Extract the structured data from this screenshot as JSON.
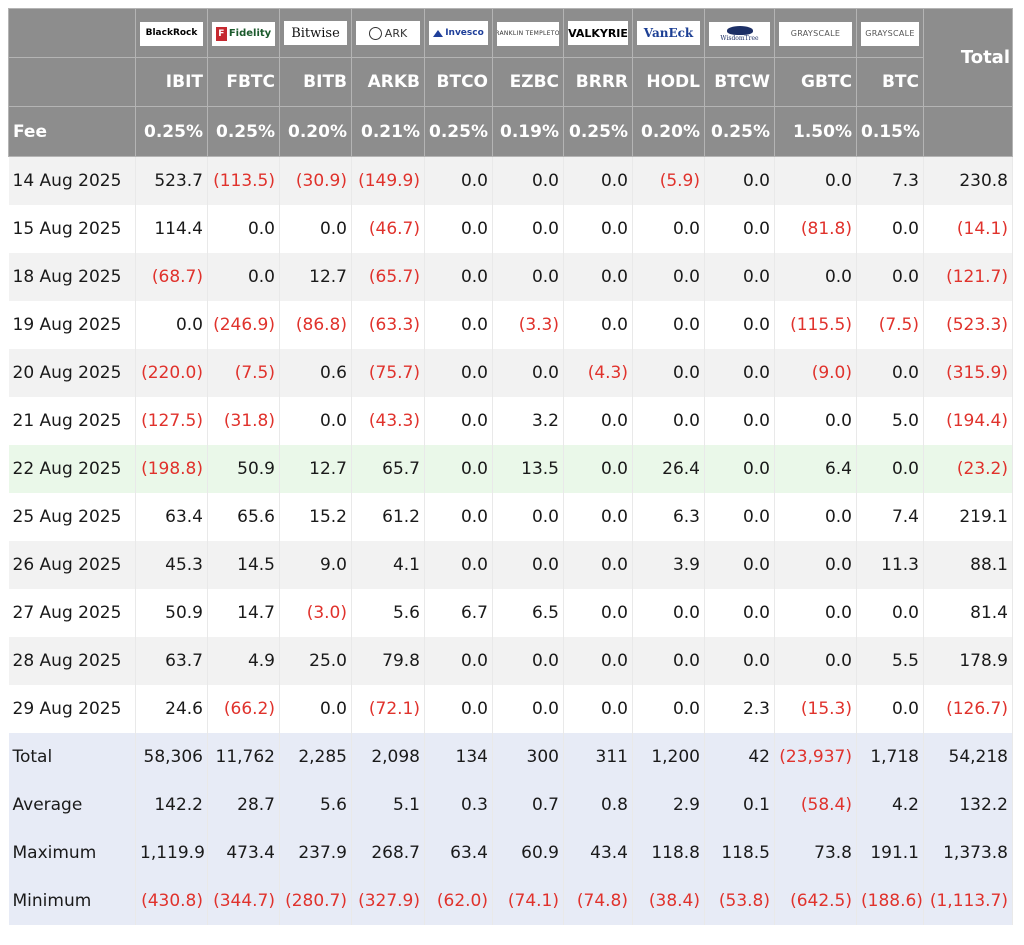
{
  "chart_data": {
    "type": "table",
    "colors": {
      "header_bg": "#8d8d8d",
      "header_text": "#ffffff",
      "negative": "#e0322c",
      "highlight_row": "#eaf8e9",
      "summary_bg": "#e7ebf6",
      "stripe": "#f2f2f2"
    },
    "logos": {
      "blackrock": "BlackRock",
      "fidelity": "Fidelity",
      "bitwise": "Bitwise",
      "ark": "ARK",
      "invesco": "Invesco",
      "franklin": "FRANKLIN TEMPLETON",
      "valkyrie": "VALKYRIE",
      "vaneck": "VanEck",
      "wisdomtree": "WisdomTree",
      "grayscale": "GRAYSCALE",
      "grayscale_btc": "GRAYSCALE"
    },
    "total_label": "Total",
    "fee_label": "Fee",
    "tickers": [
      "IBIT",
      "FBTC",
      "BITB",
      "ARKB",
      "BTCO",
      "EZBC",
      "BRRR",
      "HODL",
      "BTCW",
      "GBTC",
      "BTC"
    ],
    "fees": [
      "0.25%",
      "0.25%",
      "0.20%",
      "0.21%",
      "0.25%",
      "0.19%",
      "0.25%",
      "0.20%",
      "0.25%",
      "1.50%",
      "0.15%"
    ],
    "rows": [
      {
        "date": "14 Aug 2025",
        "values": [
          "523.7",
          "(113.5)",
          "(30.9)",
          "(149.9)",
          "0.0",
          "0.0",
          "0.0",
          "(5.9)",
          "0.0",
          "0.0",
          "7.3",
          "230.8"
        ]
      },
      {
        "date": "15 Aug 2025",
        "values": [
          "114.4",
          "0.0",
          "0.0",
          "(46.7)",
          "0.0",
          "0.0",
          "0.0",
          "0.0",
          "0.0",
          "(81.8)",
          "0.0",
          "(14.1)"
        ]
      },
      {
        "date": "18 Aug 2025",
        "values": [
          "(68.7)",
          "0.0",
          "12.7",
          "(65.7)",
          "0.0",
          "0.0",
          "0.0",
          "0.0",
          "0.0",
          "0.0",
          "0.0",
          "(121.7)"
        ]
      },
      {
        "date": "19 Aug 2025",
        "values": [
          "0.0",
          "(246.9)",
          "(86.8)",
          "(63.3)",
          "0.0",
          "(3.3)",
          "0.0",
          "0.0",
          "0.0",
          "(115.5)",
          "(7.5)",
          "(523.3)"
        ]
      },
      {
        "date": "20 Aug 2025",
        "values": [
          "(220.0)",
          "(7.5)",
          "0.6",
          "(75.7)",
          "0.0",
          "0.0",
          "(4.3)",
          "0.0",
          "0.0",
          "(9.0)",
          "0.0",
          "(315.9)"
        ]
      },
      {
        "date": "21 Aug 2025",
        "values": [
          "(127.5)",
          "(31.8)",
          "0.0",
          "(43.3)",
          "0.0",
          "3.2",
          "0.0",
          "0.0",
          "0.0",
          "0.0",
          "5.0",
          "(194.4)"
        ]
      },
      {
        "date": "22 Aug 2025",
        "highlight": true,
        "values": [
          "(198.8)",
          "50.9",
          "12.7",
          "65.7",
          "0.0",
          "13.5",
          "0.0",
          "26.4",
          "0.0",
          "6.4",
          "0.0",
          "(23.2)"
        ]
      },
      {
        "date": "25 Aug 2025",
        "values": [
          "63.4",
          "65.6",
          "15.2",
          "61.2",
          "0.0",
          "0.0",
          "0.0",
          "6.3",
          "0.0",
          "0.0",
          "7.4",
          "219.1"
        ]
      },
      {
        "date": "26 Aug 2025",
        "values": [
          "45.3",
          "14.5",
          "9.0",
          "4.1",
          "0.0",
          "0.0",
          "0.0",
          "3.9",
          "0.0",
          "0.0",
          "11.3",
          "88.1"
        ]
      },
      {
        "date": "27 Aug 2025",
        "values": [
          "50.9",
          "14.7",
          "(3.0)",
          "5.6",
          "6.7",
          "6.5",
          "0.0",
          "0.0",
          "0.0",
          "0.0",
          "0.0",
          "81.4"
        ]
      },
      {
        "date": "28 Aug 2025",
        "values": [
          "63.7",
          "4.9",
          "25.0",
          "79.8",
          "0.0",
          "0.0",
          "0.0",
          "0.0",
          "0.0",
          "0.0",
          "5.5",
          "178.9"
        ]
      },
      {
        "date": "29 Aug 2025",
        "values": [
          "24.6",
          "(66.2)",
          "0.0",
          "(72.1)",
          "0.0",
          "0.0",
          "0.0",
          "0.0",
          "2.3",
          "(15.3)",
          "0.0",
          "(126.7)"
        ]
      }
    ],
    "summary": [
      {
        "label": "Total",
        "values": [
          "58,306",
          "11,762",
          "2,285",
          "2,098",
          "134",
          "300",
          "311",
          "1,200",
          "42",
          "(23,937)",
          "1,718",
          "54,218"
        ]
      },
      {
        "label": "Average",
        "values": [
          "142.2",
          "28.7",
          "5.6",
          "5.1",
          "0.3",
          "0.7",
          "0.8",
          "2.9",
          "0.1",
          "(58.4)",
          "4.2",
          "132.2"
        ]
      },
      {
        "label": "Maximum",
        "values": [
          "1,119.9",
          "473.4",
          "237.9",
          "268.7",
          "63.4",
          "60.9",
          "43.4",
          "118.8",
          "118.5",
          "73.8",
          "191.1",
          "1,373.8"
        ]
      },
      {
        "label": "Minimum",
        "values": [
          "(430.8)",
          "(344.7)",
          "(280.7)",
          "(327.9)",
          "(62.0)",
          "(74.1)",
          "(74.8)",
          "(38.4)",
          "(53.8)",
          "(642.5)",
          "(188.6)",
          "(1,113.7)"
        ]
      }
    ]
  }
}
